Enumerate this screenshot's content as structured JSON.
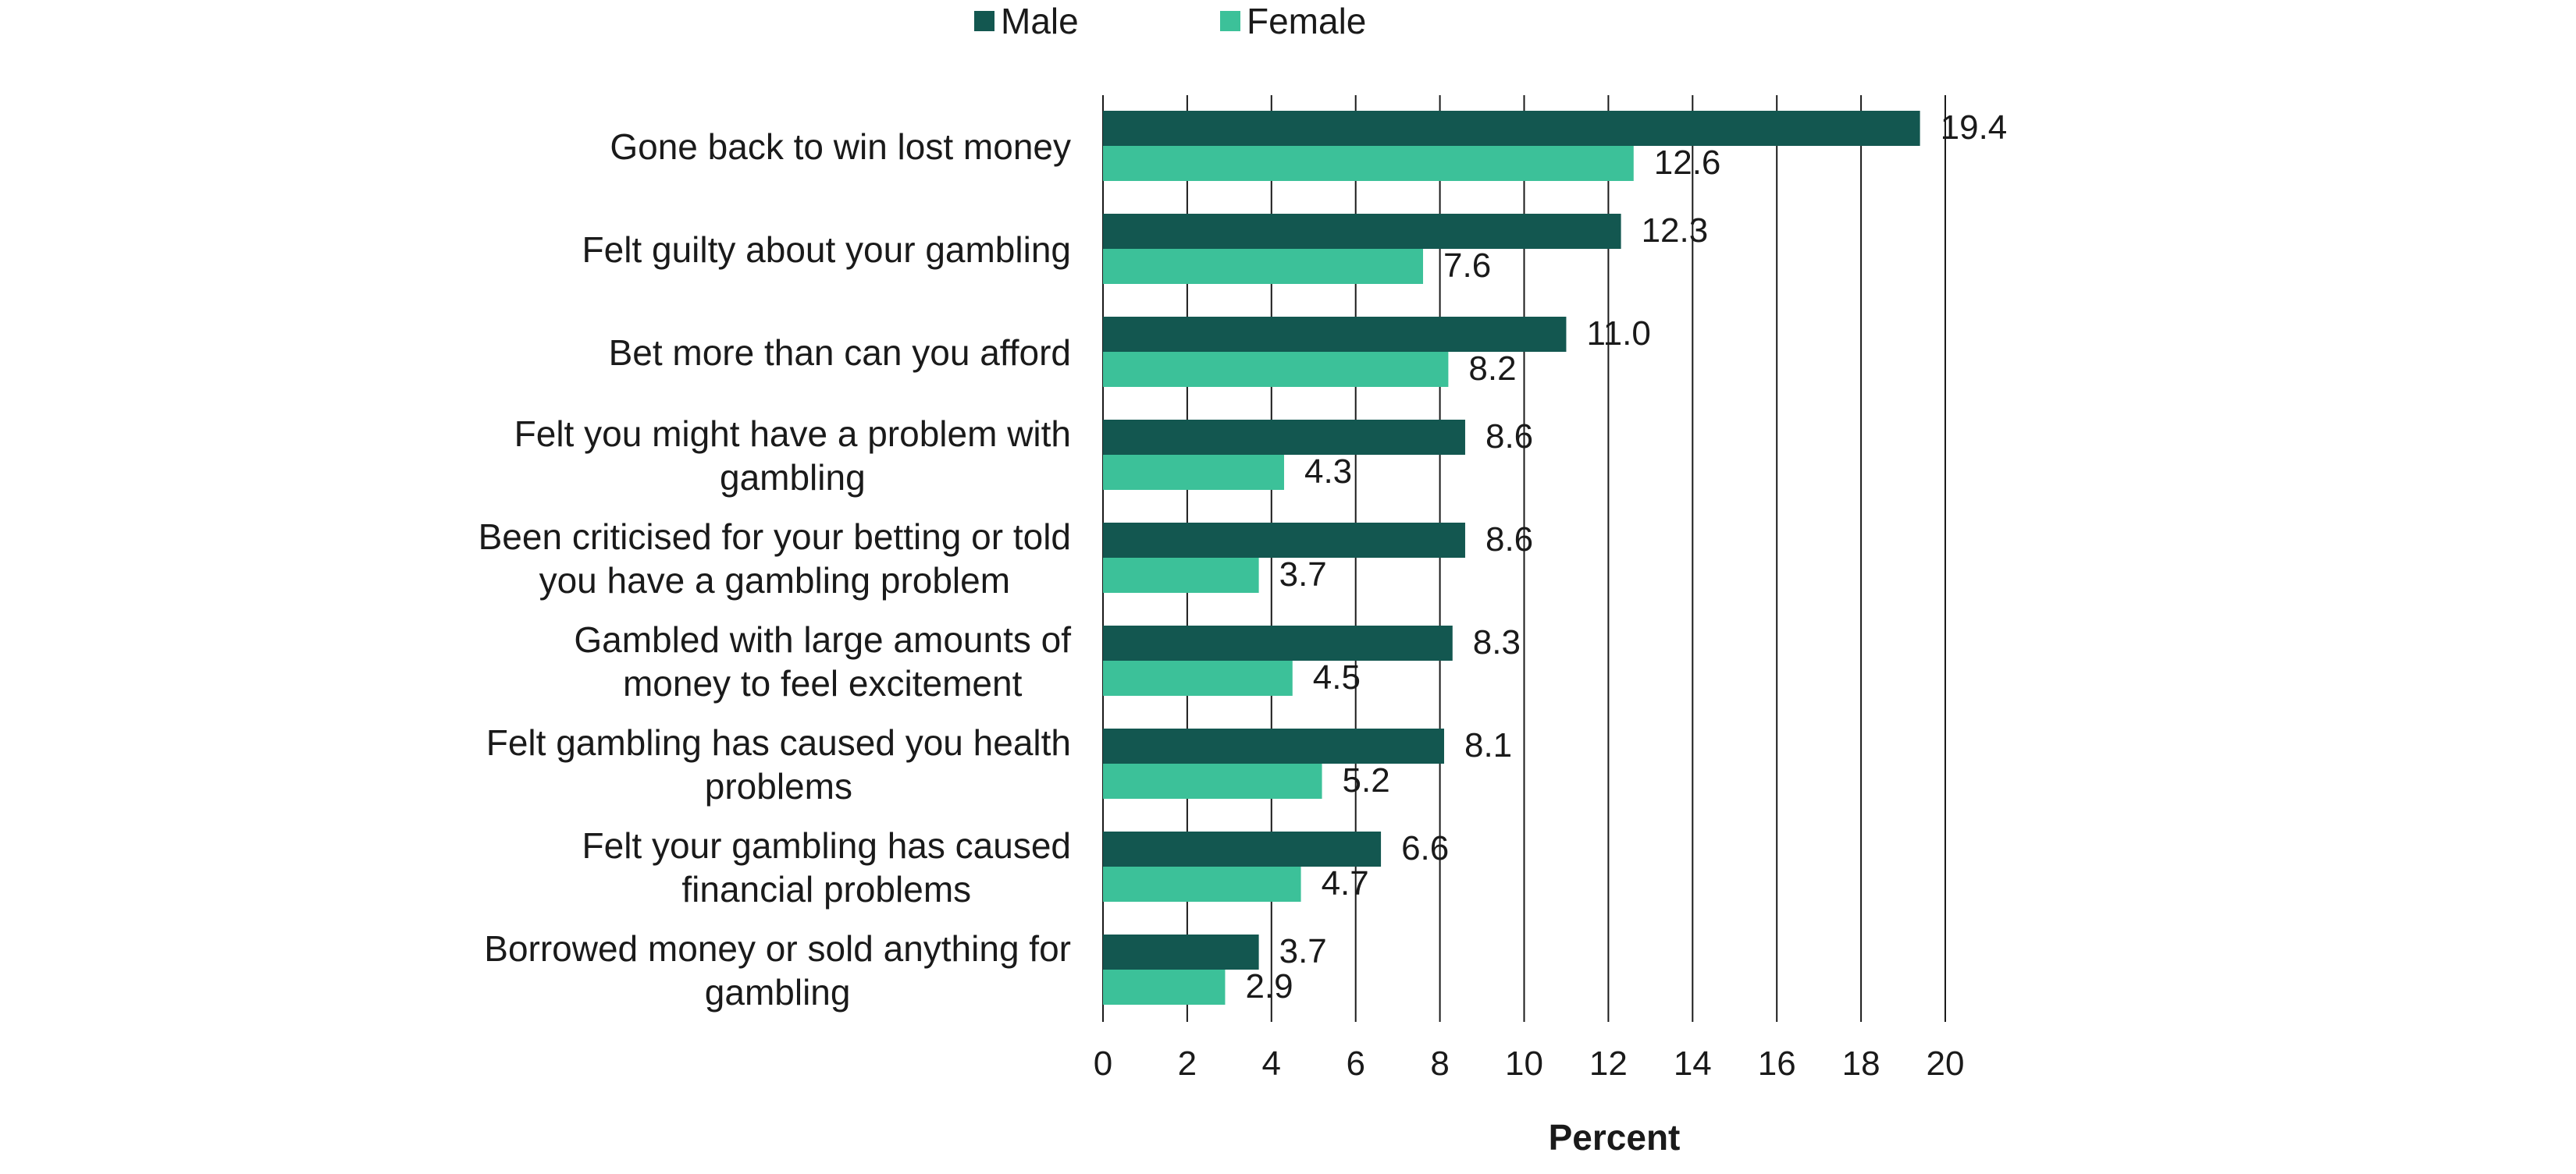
{
  "chart_data": {
    "type": "bar",
    "orientation": "horizontal",
    "categories": [
      "Gone back to win lost money",
      "Felt guilty about your gambling",
      "Bet more than can you afford",
      "Felt you might have a problem with gambling",
      "Been criticised for your betting or told you have a gambling problem",
      "Gambled with large amounts of money to feel excitement",
      "Felt gambling has caused you health problems",
      "Felt your gambling has caused financial problems",
      "Borrowed money or sold anything for gambling"
    ],
    "category_lines": [
      [
        "Gone back to win lost money"
      ],
      [
        "Felt guilty about your gambling"
      ],
      [
        "Bet more than can you afford"
      ],
      [
        "Felt you might have a problem with",
        "gambling"
      ],
      [
        "Been criticised for your betting or told",
        "you have a gambling problem"
      ],
      [
        "Gambled with large amounts of",
        "money to feel excitement"
      ],
      [
        "Felt gambling has caused you health",
        "problems"
      ],
      [
        "Felt your gambling has caused",
        "financial problems"
      ],
      [
        "Borrowed money or sold anything for",
        "gambling"
      ]
    ],
    "series": [
      {
        "name": "Male",
        "color": "#135750",
        "values": [
          19.4,
          12.3,
          11.0,
          8.6,
          8.6,
          8.3,
          8.1,
          6.6,
          3.7
        ],
        "labels": [
          "19.4",
          "12.3",
          "11.0",
          "8.6",
          "8.6",
          "8.3",
          "8.1",
          "6.6",
          "3.7"
        ]
      },
      {
        "name": "Female",
        "color": "#3cc199",
        "values": [
          12.6,
          7.6,
          8.2,
          4.3,
          3.7,
          4.5,
          5.2,
          4.7,
          2.9
        ],
        "labels": [
          "12.6",
          "7.6",
          "8.2",
          "4.3",
          "3.7",
          "4.5",
          "5.2",
          "4.7",
          "2.9"
        ]
      }
    ],
    "xlabel": "Percent",
    "ylabel": "",
    "xlim": [
      0,
      20
    ],
    "xticks": [
      "0",
      "2",
      "4",
      "6",
      "8",
      "10",
      "12",
      "14",
      "16",
      "18",
      "20"
    ],
    "grid": "vertical",
    "legend_position": "top"
  }
}
